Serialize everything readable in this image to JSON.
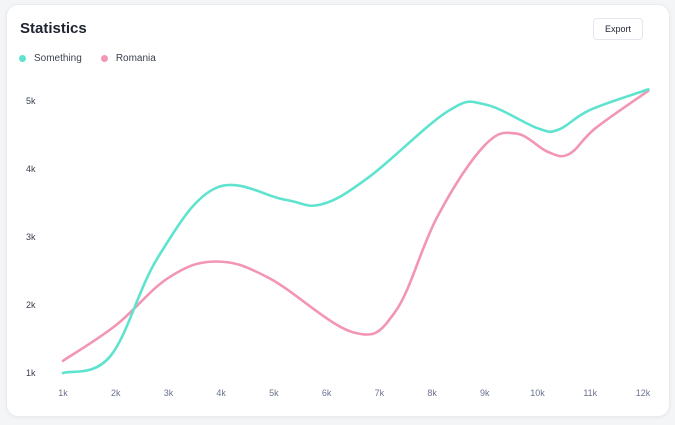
{
  "header": {
    "title": "Statistics",
    "export_label": "Export"
  },
  "chart_data": {
    "type": "line",
    "title": "Statistics",
    "xlabel": "",
    "ylabel": "",
    "categories": [
      "1k",
      "2k",
      "3k",
      "4k",
      "5k",
      "6k",
      "7k",
      "8k",
      "9k",
      "10k",
      "11k",
      "12k"
    ],
    "y_ticks": [
      "1k",
      "2k",
      "3k",
      "4k",
      "5k"
    ],
    "ylim": [
      1000,
      5400
    ],
    "grid": false,
    "legend_position": "top-left",
    "series": [
      {
        "name": "Something",
        "color": "#5ee3cf",
        "x": [
          1,
          1.9,
          2.8,
          3.9,
          5.2,
          5.9,
          6.8,
          8.3,
          9.0,
          10.0,
          10.4,
          11.0,
          12.1
        ],
        "y": [
          1000,
          1250,
          2700,
          3720,
          3550,
          3480,
          3880,
          4850,
          4950,
          4600,
          4580,
          4870,
          5170
        ]
      },
      {
        "name": "Romania",
        "color": "#f296b3",
        "x": [
          1,
          2.0,
          3.0,
          3.9,
          4.9,
          6.5,
          7.3,
          8.1,
          9.0,
          9.6,
          10.2,
          10.6,
          11.1,
          12.1
        ],
        "y": [
          1180,
          1700,
          2400,
          2640,
          2400,
          1600,
          1900,
          3300,
          4350,
          4520,
          4250,
          4220,
          4600,
          5150
        ]
      }
    ]
  }
}
